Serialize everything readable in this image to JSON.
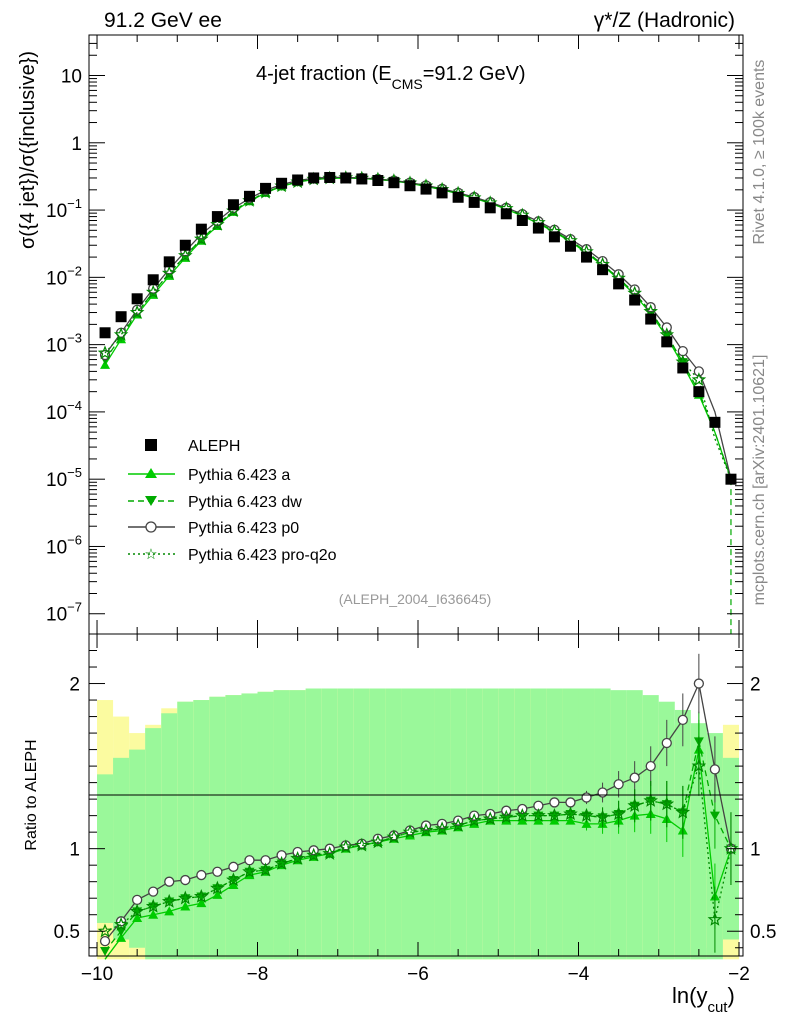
{
  "header": {
    "left": "91.2 GeV ee",
    "right": "γ*/Z (Hadronic)"
  },
  "side": {
    "rivet": "Rivet 4.1.0, ≥ 100k events",
    "mcplots": "mcplots.cern.ch [arXiv:2401.10621]"
  },
  "chart_data": {
    "type": "line",
    "title": "4-jet fraction (E_CMS=91.2 GeV)",
    "title_main": "4-jet fraction (E",
    "title_sub": "CMS",
    "title_tail": "=91.2 GeV)",
    "analysis": "(ALEPH_2004_I636645)",
    "ylabel": "σ({4 jet})/σ({inclusive})",
    "ratio_ylabel": "Ratio to ALEPH",
    "xlabel_main": "ln(y",
    "xlabel_sub": "cut",
    "xlabel_tail": ")",
    "xlim": [
      -10.1,
      -1.95
    ],
    "ylim": [
      5e-08,
      40
    ],
    "ratio_ylim": [
      0.35,
      2.3
    ],
    "x_ticks": [
      -10,
      -8,
      -6,
      -4,
      -2
    ],
    "x_tick_labels": [
      "−10",
      "−8",
      "−6",
      "−4",
      "−2"
    ],
    "y_ticks": [
      1e-07,
      1e-06,
      1e-05,
      0.0001,
      0.001,
      0.01,
      0.1,
      1,
      10
    ],
    "y_tick_labels": [
      "10^-7",
      "10^-6",
      "10^-5",
      "10^-4",
      "10^-3",
      "10^-2",
      "10^-1",
      "1",
      "10"
    ],
    "ratio_ticks": [
      0.5,
      1,
      2
    ],
    "ratio_tick_labels": [
      "0.5",
      "1",
      "2"
    ],
    "x": [
      -9.9,
      -9.7,
      -9.5,
      -9.3,
      -9.1,
      -8.9,
      -8.7,
      -8.5,
      -8.3,
      -8.1,
      -7.9,
      -7.7,
      -7.5,
      -7.3,
      -7.1,
      -6.9,
      -6.7,
      -6.5,
      -6.3,
      -6.1,
      -5.9,
      -5.7,
      -5.5,
      -5.3,
      -5.1,
      -4.9,
      -4.7,
      -4.5,
      -4.3,
      -4.1,
      -3.9,
      -3.7,
      -3.5,
      -3.3,
      -3.1,
      -2.9,
      -2.7,
      -2.5,
      -2.3,
      -2.1
    ],
    "series": [
      {
        "name": "ALEPH",
        "color": "#000000",
        "style": "data",
        "values": [
          0.0015,
          0.0026,
          0.0048,
          0.0092,
          0.017,
          0.03,
          0.052,
          0.08,
          0.12,
          0.16,
          0.21,
          0.25,
          0.28,
          0.3,
          0.305,
          0.3,
          0.29,
          0.275,
          0.255,
          0.23,
          0.205,
          0.18,
          0.155,
          0.13,
          0.108,
          0.088,
          0.07,
          0.054,
          0.04,
          0.029,
          0.02,
          0.013,
          0.008,
          0.0046,
          0.0024,
          0.0011,
          0.00045,
          0.0002,
          7e-05,
          1e-05
        ]
      },
      {
        "name": "Pythia 6.423 a",
        "color": "#00cc00",
        "style": "solid",
        "marker": "triangle-up",
        "values": [
          0.0005,
          0.0012,
          0.0028,
          0.0055,
          0.0105,
          0.0195,
          0.035,
          0.058,
          0.094,
          0.135,
          0.18,
          0.225,
          0.26,
          0.285,
          0.295,
          0.3,
          0.295,
          0.285,
          0.27,
          0.25,
          0.225,
          0.2,
          0.175,
          0.15,
          0.126,
          0.103,
          0.082,
          0.063,
          0.047,
          0.034,
          0.023,
          0.015,
          0.0094,
          0.0055,
          0.0029,
          0.0013,
          0.0005,
          0.00018,
          5e-05,
          1e-05
        ]
      },
      {
        "name": "Pythia 6.423 dw",
        "color": "#00aa00",
        "style": "dashed",
        "marker": "triangle-down",
        "values": [
          0.0006,
          0.0013,
          0.003,
          0.006,
          0.0115,
          0.021,
          0.037,
          0.061,
          0.097,
          0.138,
          0.183,
          0.228,
          0.262,
          0.287,
          0.297,
          0.302,
          0.297,
          0.287,
          0.272,
          0.252,
          0.228,
          0.202,
          0.177,
          0.152,
          0.128,
          0.105,
          0.084,
          0.065,
          0.048,
          0.035,
          0.024,
          0.0155,
          0.0097,
          0.0058,
          0.0031,
          0.0014,
          0.00055,
          0.0002,
          5e-05,
          1e-05
        ]
      },
      {
        "name": "Pythia 6.423 p0",
        "color": "#444444",
        "style": "solid",
        "marker": "circle-open",
        "values": [
          0.0007,
          0.0015,
          0.0033,
          0.0068,
          0.0132,
          0.0244,
          0.0436,
          0.0688,
          0.107,
          0.149,
          0.196,
          0.24,
          0.274,
          0.298,
          0.306,
          0.306,
          0.3,
          0.29,
          0.275,
          0.256,
          0.233,
          0.207,
          0.181,
          0.156,
          0.131,
          0.108,
          0.087,
          0.068,
          0.051,
          0.037,
          0.0262,
          0.0174,
          0.0111,
          0.0066,
          0.0036,
          0.0018,
          0.0008,
          0.0004,
          0.0001,
          1e-05
        ]
      },
      {
        "name": "Pythia 6.423 pro-q2o",
        "color": "#008800",
        "style": "dotted",
        "marker": "star-open",
        "values": [
          0.00075,
          0.0014,
          0.003,
          0.006,
          0.0115,
          0.021,
          0.037,
          0.061,
          0.097,
          0.138,
          0.183,
          0.228,
          0.262,
          0.287,
          0.297,
          0.302,
          0.297,
          0.287,
          0.272,
          0.252,
          0.228,
          0.202,
          0.177,
          0.152,
          0.128,
          0.105,
          0.084,
          0.065,
          0.048,
          0.035,
          0.024,
          0.0155,
          0.0097,
          0.0058,
          0.0031,
          0.0014,
          0.00055,
          0.0003,
          4e-05,
          1e-05
        ]
      }
    ],
    "ratios": [
      {
        "name": "Pythia 6.423 a",
        "values": [
          0.33,
          0.46,
          0.58,
          0.6,
          0.62,
          0.65,
          0.67,
          0.72,
          0.78,
          0.84,
          0.86,
          0.9,
          0.93,
          0.95,
          0.97,
          1.0,
          1.02,
          1.04,
          1.06,
          1.08,
          1.1,
          1.11,
          1.13,
          1.15,
          1.17,
          1.17,
          1.17,
          1.17,
          1.17,
          1.17,
          1.15,
          1.15,
          1.17,
          1.2,
          1.21,
          1.18,
          1.11,
          1.6,
          0.71,
          1.0
        ]
      },
      {
        "name": "Pythia 6.423 dw",
        "values": [
          0.38,
          0.5,
          0.62,
          0.65,
          0.68,
          0.7,
          0.71,
          0.76,
          0.81,
          0.86,
          0.87,
          0.91,
          0.94,
          0.96,
          0.97,
          1.01,
          1.02,
          1.04,
          1.07,
          1.1,
          1.11,
          1.12,
          1.14,
          1.17,
          1.18,
          1.19,
          1.2,
          1.2,
          1.2,
          1.21,
          1.2,
          1.19,
          1.21,
          1.26,
          1.29,
          1.27,
          1.22,
          1.65,
          1.2,
          1.0
        ]
      },
      {
        "name": "Pythia 6.423 p0",
        "values": [
          0.44,
          0.56,
          0.69,
          0.74,
          0.8,
          0.81,
          0.84,
          0.86,
          0.89,
          0.93,
          0.93,
          0.96,
          0.98,
          0.99,
          1.0,
          1.02,
          1.03,
          1.06,
          1.08,
          1.11,
          1.14,
          1.15,
          1.17,
          1.2,
          1.21,
          1.23,
          1.24,
          1.26,
          1.28,
          1.28,
          1.31,
          1.34,
          1.39,
          1.43,
          1.5,
          1.64,
          1.78,
          2.0,
          1.48,
          1.0
        ]
      },
      {
        "name": "Pythia 6.423 pro-q2o",
        "values": [
          0.5,
          0.54,
          0.62,
          0.65,
          0.68,
          0.7,
          0.71,
          0.76,
          0.81,
          0.86,
          0.87,
          0.91,
          0.94,
          0.96,
          0.97,
          1.01,
          1.02,
          1.04,
          1.07,
          1.1,
          1.11,
          1.12,
          1.14,
          1.17,
          1.18,
          1.19,
          1.2,
          1.2,
          1.2,
          1.21,
          1.2,
          1.19,
          1.21,
          1.26,
          1.29,
          1.27,
          1.22,
          1.5,
          0.57,
          1.0
        ]
      }
    ],
    "band_green": [
      0.45,
      0.55,
      0.6,
      0.73,
      0.82,
      0.89,
      0.9,
      0.92,
      0.93,
      0.94,
      0.95,
      0.96,
      0.96,
      0.97,
      0.97,
      0.97,
      0.97,
      0.97,
      0.97,
      0.97,
      0.97,
      0.97,
      0.97,
      0.97,
      0.97,
      0.97,
      0.97,
      0.97,
      0.97,
      0.97,
      0.97,
      0.97,
      0.96,
      0.96,
      0.93,
      0.89,
      0.84,
      0.76,
      0.7,
      0.55
    ],
    "band_yellow": [
      0.9,
      0.8,
      0.7,
      0.75,
      0.85,
      0.89,
      0.9,
      0.92,
      0.93,
      0.94,
      0.95,
      0.96,
      0.96,
      0.97,
      0.97,
      0.97,
      0.97,
      0.97,
      0.97,
      0.97,
      0.97,
      0.97,
      0.97,
      0.97,
      0.97,
      0.97,
      0.97,
      0.97,
      0.97,
      0.97,
      0.96,
      0.96,
      0.95,
      0.92,
      0.88,
      0.75,
      0.65,
      0.75,
      0.6,
      0.75
    ],
    "legend_position": "lower-left"
  }
}
